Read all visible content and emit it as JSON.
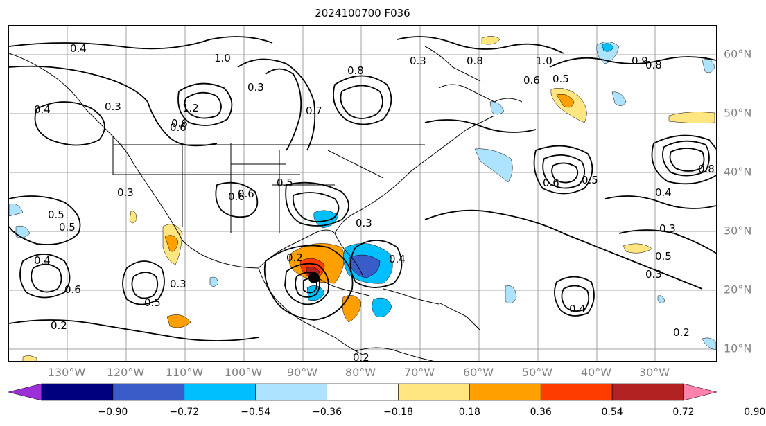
{
  "title": "2024100700 F036",
  "lon_labels": [
    "130°W",
    "120°W",
    "110°W",
    "100°W",
    "90°W",
    "80°W",
    "70°W",
    "60°W",
    "50°W",
    "40°W",
    "30°W"
  ],
  "lat_labels": [
    "60°N",
    "50°N",
    "40°N",
    "30°N",
    "20°N",
    "10°N"
  ],
  "colorbar": {
    "ticks": [
      "−0.90",
      "−0.72",
      "−0.54",
      "−0.36",
      "−0.18",
      "0.18",
      "0.36",
      "0.54",
      "0.72",
      "0.90"
    ],
    "colors": [
      "#9b30d9",
      "#00007f",
      "#3a5cc8",
      "#00bfff",
      "#aee3ff",
      "#ffffff",
      "#ffe680",
      "#ffa000",
      "#ff3c00",
      "#b22222",
      "#ff82ab"
    ]
  },
  "contour_labels": [
    "0.4",
    "1.0",
    "0.8",
    "0.3",
    "0.2",
    "0.5",
    "0.6",
    "1.2",
    "0.7",
    "0.8",
    "0.9",
    "0.6",
    "0.8",
    "0.5",
    "1.0",
    "0.3",
    "0.4",
    "0.6",
    "0.5",
    "0.3",
    "0.2",
    "0.4",
    "0.3",
    "0.5",
    "0.6",
    "0.4",
    "0.3",
    "0.2",
    "0.3",
    "0.4",
    "0.3",
    "0.5",
    "0.2",
    "0.4",
    "0.5",
    "0.6",
    "0.6",
    "0.3",
    "0.8",
    "0.6",
    "0.5"
  ]
}
